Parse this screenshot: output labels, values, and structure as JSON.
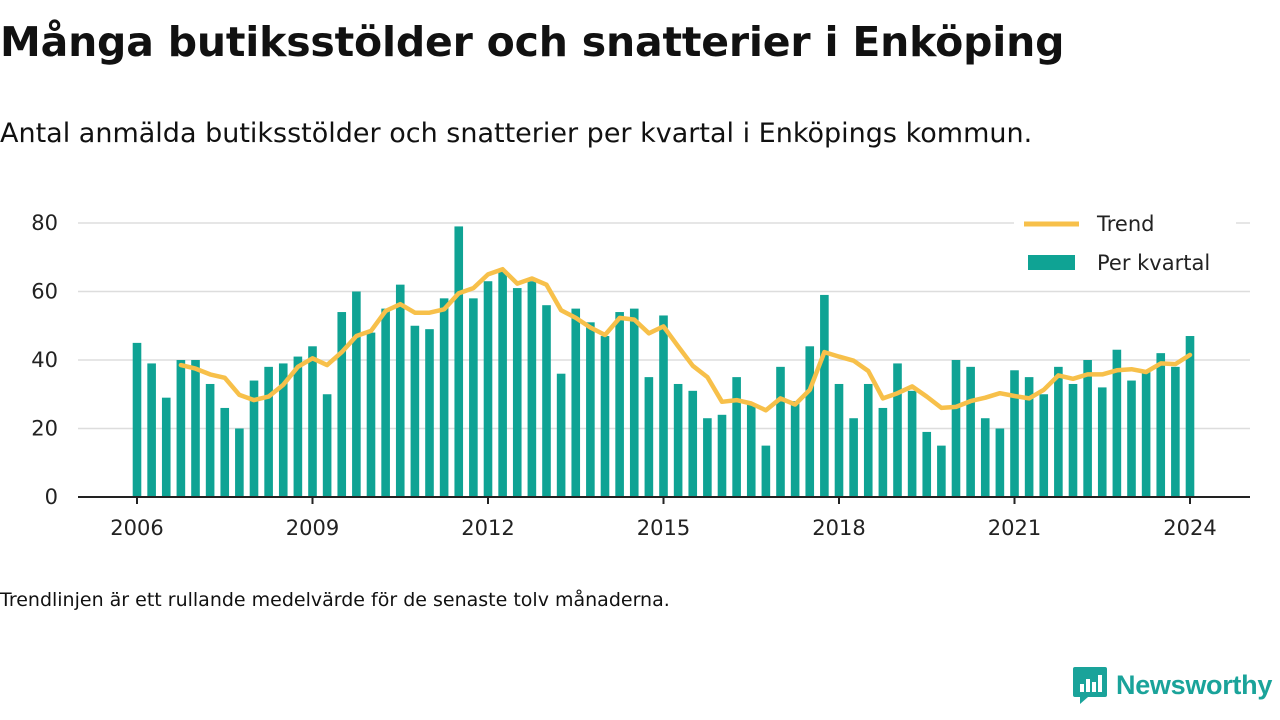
{
  "title": "Många butiksstölder och snatterier i Enköping",
  "subtitle": "Antal anmälda butiksstölder och snatterier per kvartal i Enköpings kommun.",
  "footnote": "Trendlinjen är ett rullande medelvärde för de senaste tolv månaderna.",
  "brand": {
    "name": "Newsworthy",
    "icon": "newsworthy-logo-icon"
  },
  "colors": {
    "bars": "#0fa394",
    "trend": "#f7c04a",
    "grid": "#dddddd",
    "axis": "#222222"
  },
  "chart_data": {
    "type": "bar",
    "ylim": [
      0,
      80
    ],
    "y_ticks": [
      "0",
      "20",
      "40",
      "60",
      "80"
    ],
    "x_ticks": [
      "2006",
      "2009",
      "2012",
      "2015",
      "2018",
      "2021",
      "2024"
    ],
    "x": [
      "2006 K1",
      "2006 K2",
      "2006 K3",
      "2006 K4",
      "2007 K1",
      "2007 K2",
      "2007 K3",
      "2007 K4",
      "2008 K1",
      "2008 K2",
      "2008 K3",
      "2008 K4",
      "2009 K1",
      "2009 K2",
      "2009 K3",
      "2009 K4",
      "2010 K1",
      "2010 K2",
      "2010 K3",
      "2010 K4",
      "2011 K1",
      "2011 K2",
      "2011 K3",
      "2011 K4",
      "2012 K1",
      "2012 K2",
      "2012 K3",
      "2012 K4",
      "2013 K1",
      "2013 K2",
      "2013 K3",
      "2013 K4",
      "2014 K1",
      "2014 K2",
      "2014 K3",
      "2014 K4",
      "2015 K1",
      "2015 K2",
      "2015 K3",
      "2015 K4",
      "2016 K1",
      "2016 K2",
      "2016 K3",
      "2016 K4",
      "2017 K1",
      "2017 K2",
      "2017 K3",
      "2017 K4",
      "2018 K1",
      "2018 K2",
      "2018 K3",
      "2018 K4",
      "2019 K1",
      "2019 K2",
      "2019 K3",
      "2019 K4",
      "2020 K1",
      "2020 K2",
      "2020 K3",
      "2020 K4",
      "2021 K1",
      "2021 K2",
      "2021 K3",
      "2021 K4",
      "2022 K1",
      "2022 K2",
      "2022 K3",
      "2022 K4",
      "2023 K1",
      "2023 K2",
      "2023 K3",
      "2023 K4",
      "2024 K1"
    ],
    "legend_position": "top-right",
    "grid": true,
    "series": [
      {
        "name": "Per kvartal",
        "type": "bar",
        "values": [
          45,
          39,
          29,
          40,
          40,
          33,
          26,
          20,
          34,
          38,
          39,
          41,
          44,
          30,
          54,
          60,
          48,
          55,
          62,
          50,
          49,
          58,
          79,
          58,
          63,
          66,
          61,
          63,
          56,
          36,
          55,
          51,
          47,
          54,
          55,
          35,
          53,
          33,
          31,
          23,
          24,
          35,
          27,
          15,
          38,
          28,
          44,
          59,
          33,
          23,
          33,
          26,
          39,
          31,
          19,
          15,
          40,
          38,
          23,
          20,
          37,
          35,
          30,
          38,
          33,
          40,
          32,
          43,
          34,
          37,
          42,
          38,
          47
        ]
      },
      {
        "name": "Trend",
        "type": "line",
        "values": [
          null,
          null,
          null,
          38.5,
          37.5,
          35.8,
          34.8,
          29.8,
          28.3,
          29.3,
          32.8,
          38.0,
          40.5,
          38.5,
          42.3,
          47.0,
          48.5,
          54.3,
          56.3,
          53.8,
          53.8,
          54.8,
          59.5,
          61.0,
          65.0,
          66.5,
          62.3,
          63.8,
          62.0,
          54.5,
          52.3,
          49.5,
          47.3,
          52.3,
          51.8,
          47.8,
          49.8,
          44.0,
          38.3,
          35.0,
          27.8,
          28.3,
          27.3,
          25.3,
          28.8,
          27.0,
          31.3,
          42.3,
          41.0,
          39.8,
          36.8,
          28.8,
          30.3,
          32.3,
          29.3,
          26.0,
          26.3,
          28.0,
          29.0,
          30.3,
          29.5,
          28.8,
          31.3,
          35.5,
          34.5,
          35.8,
          35.8,
          37.0,
          37.3,
          36.5,
          39.0,
          38.8,
          41.5
        ]
      }
    ]
  }
}
